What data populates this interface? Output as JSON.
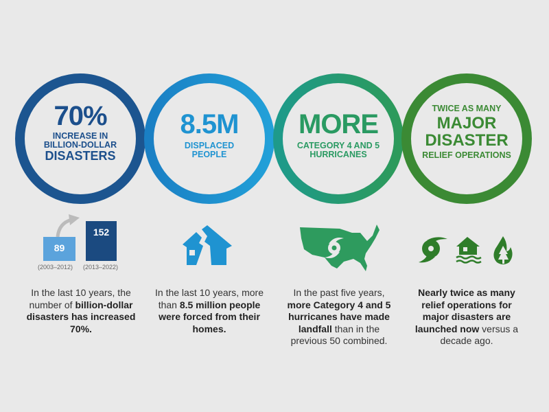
{
  "colors": {
    "c1": "#1c4f8c",
    "c2": "#1f93d1",
    "c3": "#2a9a62",
    "c4": "#3b8a34",
    "bg": "#e9e9e9"
  },
  "stats": [
    {
      "pre": "",
      "big": "70%",
      "post": "INCREASE IN BILLION-DOLLAR",
      "post2": "DISASTERS"
    },
    {
      "pre": "",
      "big": "8.5M",
      "post": "DISPLACED PEOPLE"
    },
    {
      "pre": "",
      "big": "MORE",
      "post": "CATEGORY 4 AND 5 HURRICANES"
    },
    {
      "pre": "TWICE AS MANY",
      "big": "MAJOR DISASTER",
      "post": "RELIEF OPERATIONS"
    }
  ],
  "bars": {
    "before": {
      "value": "89",
      "period": "(2003–2012)"
    },
    "after": {
      "value": "152",
      "period": "(2013–2022)"
    }
  },
  "icons": [
    "broken-house-icon",
    "us-map-hurricane-icon",
    "hurricane-icon",
    "flooded-house-icon",
    "wildfire-icon"
  ],
  "paragraphs": [
    {
      "a": "In the last 10 years, the number of ",
      "b": "billion-dollar disasters has increased 70%.",
      "c": ""
    },
    {
      "a": "In the last 10 years, more than ",
      "b": "8.5 million people were forced from their homes.",
      "c": ""
    },
    {
      "a": "In the past five years, ",
      "b": "more Category 4 and 5 hurricanes have made landfall",
      "c": " than in the previous 50 combined."
    },
    {
      "a": "",
      "b": "Nearly twice as many relief operations for major disasters are launched now",
      "c": " versus a decade ago."
    }
  ]
}
